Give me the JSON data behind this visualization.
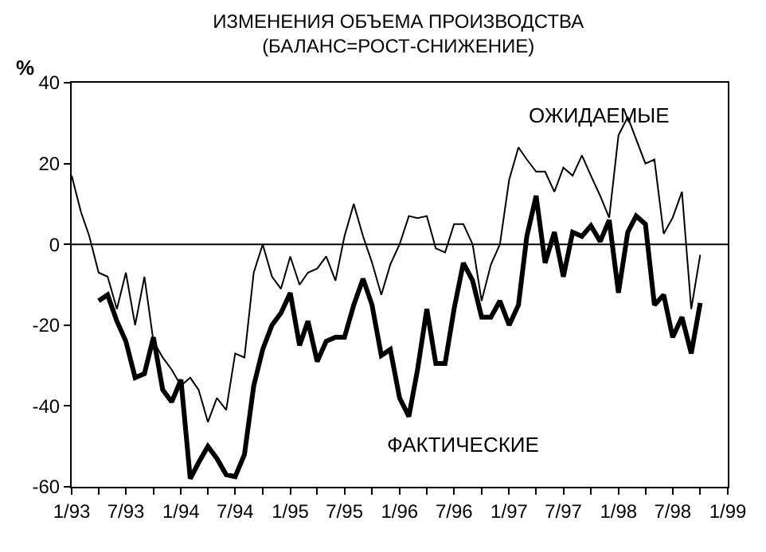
{
  "chart_data": {
    "type": "line",
    "title": "ИЗМЕНЕНИЯ ОБЪЕМА ПРОИЗВОДСТВА\n(БАЛАНС=РОСТ-СНИЖЕНИЕ)",
    "ylabel": "%",
    "x": [
      "1993-01",
      "1993-02",
      "1993-03",
      "1993-04",
      "1993-05",
      "1993-06",
      "1993-07",
      "1993-08",
      "1993-09",
      "1993-10",
      "1993-11",
      "1993-12",
      "1994-01",
      "1994-02",
      "1994-03",
      "1994-04",
      "1994-05",
      "1994-06",
      "1994-07",
      "1994-08",
      "1994-09",
      "1994-10",
      "1994-11",
      "1994-12",
      "1995-01",
      "1995-02",
      "1995-03",
      "1995-04",
      "1995-05",
      "1995-06",
      "1995-07",
      "1995-08",
      "1995-09",
      "1995-10",
      "1995-11",
      "1995-12",
      "1996-01",
      "1996-02",
      "1996-03",
      "1996-04",
      "1996-05",
      "1996-06",
      "1996-07",
      "1996-08",
      "1996-09",
      "1996-10",
      "1996-11",
      "1996-12",
      "1997-01",
      "1997-02",
      "1997-03",
      "1997-04",
      "1997-05",
      "1997-06",
      "1997-07",
      "1997-08",
      "1997-09",
      "1997-10",
      "1997-11",
      "1997-12",
      "1998-01",
      "1998-02",
      "1998-03",
      "1998-04",
      "1998-05",
      "1998-06",
      "1998-07",
      "1998-08",
      "1998-09",
      "1998-10"
    ],
    "series": [
      {
        "name": "ОЖИДАЕМЫЕ",
        "color": "#000000",
        "values": [
          17,
          8,
          2,
          -7,
          -8,
          -16,
          -7,
          -20,
          -8,
          -24,
          -28,
          -31,
          -35,
          -33,
          -36,
          -44,
          -38,
          -41,
          -27,
          -28,
          -7,
          0,
          -8,
          -11,
          -3,
          -10,
          -7,
          -6,
          -3,
          -9,
          2,
          10,
          2,
          -4.5,
          -12.5,
          -5,
          0,
          7,
          6.5,
          7,
          -1,
          -2,
          5,
          5,
          0,
          -14,
          -5,
          0,
          16,
          24,
          21,
          18,
          18,
          13,
          19,
          17,
          22,
          17,
          12,
          6.6,
          27,
          31.5,
          26,
          20,
          21,
          2.6,
          6.6,
          13,
          -16,
          -2.6
        ]
      },
      {
        "name": "ФАКТИЧЕСКИЕ",
        "color": "#000000",
        "values": [
          null,
          null,
          null,
          -14,
          -12.5,
          -19,
          -24,
          -33,
          -32,
          -23,
          -36,
          -39,
          -33.5,
          -58,
          -54,
          -50,
          -53,
          -57,
          -57.5,
          -52,
          -35,
          -26,
          -20,
          -17,
          -12,
          -25,
          -19,
          -29,
          -24,
          -23,
          -23,
          -15,
          -8.5,
          -15,
          -27.5,
          -26,
          -38,
          -42.6,
          -31,
          -16,
          -29.5,
          -29.5,
          -16,
          -4.6,
          -9,
          -18,
          -18,
          -14,
          -20,
          -15,
          2,
          12,
          -4.6,
          3,
          -8,
          3,
          2,
          4.6,
          0.7,
          6,
          -12,
          3,
          7,
          5,
          -15,
          -12.5,
          -23,
          -18,
          -27,
          -14.5
        ]
      }
    ],
    "xlim": [
      "1993-01",
      "1999-01"
    ],
    "xticks": [
      {
        "value": "1993-01",
        "label": "1/93"
      },
      {
        "value": "1993-04",
        "label": null
      },
      {
        "value": "1993-07",
        "label": "7/93"
      },
      {
        "value": "1993-10",
        "label": null
      },
      {
        "value": "1994-01",
        "label": "1/94"
      },
      {
        "value": "1994-04",
        "label": null
      },
      {
        "value": "1994-07",
        "label": "7/94"
      },
      {
        "value": "1994-10",
        "label": null
      },
      {
        "value": "1995-01",
        "label": "1/95"
      },
      {
        "value": "1995-04",
        "label": null
      },
      {
        "value": "1995-07",
        "label": "7/95"
      },
      {
        "value": "1995-10",
        "label": null
      },
      {
        "value": "1996-01",
        "label": "1/96"
      },
      {
        "value": "1996-04",
        "label": null
      },
      {
        "value": "1996-07",
        "label": "7/96"
      },
      {
        "value": "1996-10",
        "label": null
      },
      {
        "value": "1997-01",
        "label": "1/97"
      },
      {
        "value": "1997-04",
        "label": null
      },
      {
        "value": "1997-07",
        "label": "7/97"
      },
      {
        "value": "1997-10",
        "label": null
      },
      {
        "value": "1998-01",
        "label": "1/98"
      },
      {
        "value": "1998-04",
        "label": null
      },
      {
        "value": "1998-07",
        "label": "7/98"
      },
      {
        "value": "1998-10",
        "label": null
      },
      {
        "value": "1999-01",
        "label": "1/99"
      }
    ],
    "ylim": [
      -60,
      40
    ],
    "yticks": [
      -60,
      -40,
      -20,
      0,
      20,
      40
    ],
    "ref_lines": [
      {
        "axis": "y",
        "value": 0,
        "color": "#000000"
      }
    ],
    "legend": false,
    "marker": "none",
    "line_style": "solid"
  }
}
